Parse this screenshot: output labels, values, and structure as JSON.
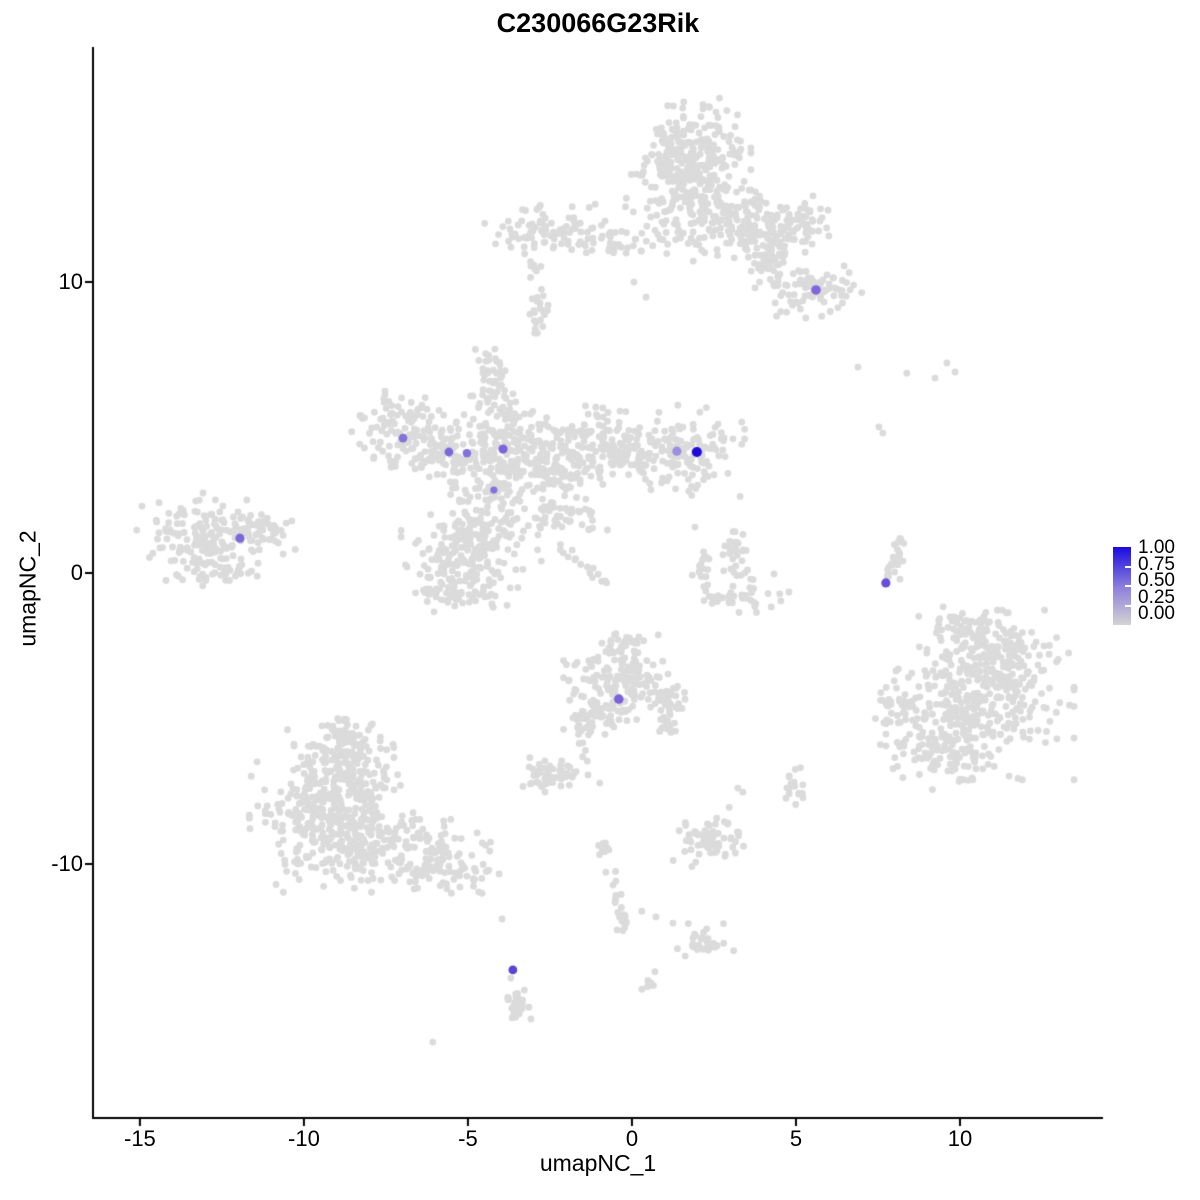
{
  "title": "C230066G23Rik",
  "axes": {
    "xlabel": "umapNC_1",
    "ylabel": "umapNC_2",
    "x_ticks": [
      "-15",
      "-10",
      "-5",
      "0",
      "5",
      "10"
    ],
    "x_tick_values": [
      -15,
      -10,
      -5,
      0,
      5,
      10
    ],
    "y_ticks": [
      "10",
      "0",
      "-10"
    ],
    "y_tick_values": [
      10,
      0,
      -10
    ],
    "xlim": [
      -16.43,
      14.36
    ],
    "ylim": [
      -18.73,
      18.08
    ]
  },
  "legend": {
    "labels": [
      "1.00",
      "0.75",
      "0.50",
      "0.25",
      "0.00"
    ],
    "high_color": "#1A0BE0",
    "mid_color": "#8E80DC",
    "low_color": "#D3D3D3"
  },
  "chart_data": {
    "type": "scatter",
    "title": "C230066G23Rik",
    "xlabel": "umapNC_1",
    "ylabel": "umapNC_2",
    "background_point_color": "#DBDBDB",
    "background_point_radius": 3.4,
    "random_seed": 42,
    "clusters": [
      {
        "name": "top-head",
        "x": 1.77,
        "y": 14.54,
        "sx": 0.79,
        "sy": 0.76,
        "n": 200
      },
      {
        "name": "top-mid",
        "x": 1.92,
        "y": 12.65,
        "sx": 0.98,
        "sy": 0.82,
        "n": 190
      },
      {
        "name": "top-arm-right",
        "x": 3.75,
        "y": 11.72,
        "sx": 0.85,
        "sy": 0.48,
        "n": 110
      },
      {
        "name": "top-right-blob",
        "x": 4.97,
        "y": 12.06,
        "sx": 0.46,
        "sy": 0.45,
        "n": 60
      },
      {
        "name": "top-lower-right",
        "x": 5.37,
        "y": 9.73,
        "sx": 0.73,
        "sy": 0.41,
        "n": 80
      },
      {
        "name": "top-connector",
        "x": 4.21,
        "y": 10.69,
        "sx": 0.37,
        "sy": 0.34,
        "n": 40
      },
      {
        "name": "top-left-band",
        "x": -2.26,
        "y": 11.72,
        "sx": 0.98,
        "sy": 0.45,
        "n": 100
      },
      {
        "name": "top-left-bridge",
        "x": -0.21,
        "y": 11.24,
        "sx": 0.43,
        "sy": 0.17,
        "n": 18
      },
      {
        "name": "top-left-tail",
        "x": -2.9,
        "y": 9.14,
        "sx": 0.21,
        "sy": 0.38,
        "n": 22
      },
      {
        "name": "top-left-dots",
        "x": -2.99,
        "y": 10.48,
        "sx": 0.12,
        "sy": 0.17,
        "n": 7
      },
      {
        "name": "band-left-upper",
        "x": -6.83,
        "y": 4.98,
        "sx": 0.73,
        "sy": 0.58,
        "n": 110
      },
      {
        "name": "band-left-lower",
        "x": -5.79,
        "y": 3.95,
        "sx": 0.67,
        "sy": 0.38,
        "n": 70
      },
      {
        "name": "band-centerleft",
        "x": -4.02,
        "y": 4.3,
        "sx": 0.79,
        "sy": 0.76,
        "n": 160
      },
      {
        "name": "band-center",
        "x": -2.44,
        "y": 3.54,
        "sx": 0.79,
        "sy": 0.82,
        "n": 150
      },
      {
        "name": "band-centerright",
        "x": -1.04,
        "y": 4.5,
        "sx": 0.73,
        "sy": 0.62,
        "n": 110
      },
      {
        "name": "band-arm-inner",
        "x": 0.4,
        "y": 4.16,
        "sx": 0.55,
        "sy": 0.45,
        "n": 70
      },
      {
        "name": "band-arm-end",
        "x": 1.86,
        "y": 4.16,
        "sx": 0.67,
        "sy": 0.65,
        "n": 100
      },
      {
        "name": "band-below-center",
        "x": -4.42,
        "y": 1.82,
        "sx": 0.73,
        "sy": 0.76,
        "n": 120
      },
      {
        "name": "band-lower-blob",
        "x": -5.18,
        "y": 0.45,
        "sx": 0.79,
        "sy": 0.69,
        "n": 130
      },
      {
        "name": "band-lower-edge",
        "x": -5.46,
        "y": -0.65,
        "sx": 0.55,
        "sy": 0.31,
        "n": 45
      },
      {
        "name": "band-neck",
        "x": -4.12,
        "y": 5.95,
        "sx": 0.24,
        "sy": 0.55,
        "n": 35
      },
      {
        "name": "band-neck-top",
        "x": -4.36,
        "y": 7.32,
        "sx": 0.21,
        "sy": 0.27,
        "n": 18
      },
      {
        "name": "band-diag",
        "x": -2.04,
        "y": 1.92,
        "sx": 0.55,
        "sy": 0.34,
        "n": 35
      },
      {
        "name": "left-main",
        "x": -13.17,
        "y": 1.13,
        "sx": 0.82,
        "sy": 0.69,
        "n": 150
      },
      {
        "name": "left-point",
        "x": -11.49,
        "y": 1.41,
        "sx": 0.61,
        "sy": 0.34,
        "n": 55
      },
      {
        "name": "left-bottom",
        "x": -12.41,
        "y": 0.03,
        "sx": 0.43,
        "sy": 0.24,
        "n": 25
      },
      {
        "name": "ring-top",
        "x": 3.08,
        "y": 0.93,
        "sx": 0.21,
        "sy": 0.21,
        "n": 22
      },
      {
        "name": "ring-left",
        "x": 2.13,
        "y": 0.17,
        "sx": 0.15,
        "sy": 0.27,
        "n": 18
      },
      {
        "name": "ring-bottom",
        "x": 3.35,
        "y": -0.79,
        "sx": 0.61,
        "sy": 0.24,
        "n": 40
      },
      {
        "name": "ring-inner",
        "x": 3.29,
        "y": 0.03,
        "sx": 0.37,
        "sy": 0.21,
        "n": 10
      },
      {
        "name": "bottomleft-top",
        "x": -8.75,
        "y": -6.6,
        "sx": 0.76,
        "sy": 0.76,
        "n": 160
      },
      {
        "name": "bottomleft-mid",
        "x": -9.36,
        "y": -7.97,
        "sx": 0.98,
        "sy": 0.86,
        "n": 200
      },
      {
        "name": "bottomleft-base",
        "x": -8.45,
        "y": -9.35,
        "sx": 1.16,
        "sy": 0.69,
        "n": 220
      },
      {
        "name": "bottomleft-armright",
        "x": -6.31,
        "y": -9.69,
        "sx": 0.85,
        "sy": 0.52,
        "n": 90
      },
      {
        "name": "bottomleft-tail",
        "x": -4.94,
        "y": -10.38,
        "sx": 0.46,
        "sy": 0.34,
        "n": 25
      },
      {
        "name": "bottomleft-tip",
        "x": -8.9,
        "y": -5.4,
        "sx": 0.3,
        "sy": 0.27,
        "n": 25
      },
      {
        "name": "mid-main",
        "x": -0.37,
        "y": -3.75,
        "sx": 0.73,
        "sy": 0.69,
        "n": 150
      },
      {
        "name": "mid-top-tip",
        "x": -0.21,
        "y": -2.47,
        "sx": 0.3,
        "sy": 0.24,
        "n": 30
      },
      {
        "name": "mid-right-lobe",
        "x": 1.1,
        "y": -4.3,
        "sx": 0.37,
        "sy": 0.27,
        "n": 30
      },
      {
        "name": "mid-bottom",
        "x": -0.98,
        "y": -4.98,
        "sx": 0.49,
        "sy": 0.31,
        "n": 45
      },
      {
        "name": "mid-left-strand",
        "x": -1.52,
        "y": -5.57,
        "sx": 0.12,
        "sy": 0.38,
        "n": 14
      },
      {
        "name": "mid-right-strand",
        "x": 1.07,
        "y": -5.33,
        "sx": 0.15,
        "sy": 0.24,
        "n": 16
      },
      {
        "name": "small-mid-left",
        "x": -2.47,
        "y": -6.98,
        "sx": 0.37,
        "sy": 0.27,
        "n": 50
      },
      {
        "name": "strand-dot-1",
        "x": -0.88,
        "y": -9.35,
        "sx": 0.09,
        "sy": 0.14,
        "n": 10
      },
      {
        "name": "strand-end-blob",
        "x": -0.37,
        "y": -11.99,
        "sx": 0.15,
        "sy": 0.17,
        "n": 10
      },
      {
        "name": "lower-mid-cluster",
        "x": 2.32,
        "y": -9.11,
        "sx": 0.46,
        "sy": 0.45,
        "n": 70
      },
      {
        "name": "lower-small-cluster",
        "x": 2.23,
        "y": -12.61,
        "sx": 0.37,
        "sy": 0.24,
        "n": 30
      },
      {
        "name": "lower-right-dots",
        "x": 4.88,
        "y": -7.32,
        "sx": 0.18,
        "sy": 0.27,
        "n": 18
      },
      {
        "name": "bottom-strand-blob",
        "x": -3.48,
        "y": -14.78,
        "sx": 0.21,
        "sy": 0.31,
        "n": 28
      },
      {
        "name": "bottom-dot-blob",
        "x": 0.49,
        "y": -13.99,
        "sx": 0.15,
        "sy": 0.17,
        "n": 8
      },
      {
        "name": "right-main",
        "x": 10.61,
        "y": -4.19,
        "sx": 1.22,
        "sy": 1.24,
        "n": 360
      },
      {
        "name": "right-upper",
        "x": 11.37,
        "y": -2.82,
        "sx": 0.67,
        "sy": 0.62,
        "n": 80
      },
      {
        "name": "right-lower",
        "x": 9.33,
        "y": -6.15,
        "sx": 0.79,
        "sy": 0.55,
        "n": 90
      },
      {
        "name": "right-left-satellite",
        "x": 8.05,
        "y": -4.57,
        "sx": 0.34,
        "sy": 0.48,
        "n": 30
      },
      {
        "name": "right-top-tip",
        "x": 10.06,
        "y": -1.89,
        "sx": 0.52,
        "sy": 0.31,
        "n": 40
      }
    ],
    "strands": [
      {
        "name": "thin-arc-right",
        "from": [
          8.29,
          1.27
        ],
        "to": [
          7.77,
          -0.17
        ],
        "n": 20,
        "w": 0.1
      },
      {
        "name": "mid-down-strand",
        "from": [
          -0.61,
          -10.38
        ],
        "to": [
          -0.3,
          -11.86
        ],
        "n": 14,
        "w": 0.09
      },
      {
        "name": "band-diag-strand",
        "from": [
          -2.26,
          0.96
        ],
        "to": [
          -0.73,
          -0.31
        ],
        "n": 16,
        "w": 0.09
      }
    ],
    "singles": [
      [
        0.06,
        10.0
      ],
      [
        0.43,
        9.48
      ],
      [
        1.4,
        5.77
      ],
      [
        2.07,
        5.53
      ],
      [
        -11.74,
        2.51
      ],
      [
        -10.37,
        1.79
      ],
      [
        -1.34,
        -6.94
      ],
      [
        -0.98,
        -7.22
      ],
      [
        0.3,
        -11.62
      ],
      [
        0.73,
        -11.82
      ],
      [
        1.25,
        -12.03
      ],
      [
        3.23,
        -7.39
      ],
      [
        3.38,
        -7.53
      ],
      [
        -3.69,
        -13.92
      ],
      [
        -6.07,
        -16.12
      ],
      [
        -4.05,
        -10.34
      ],
      [
        -3.96,
        -11.89
      ],
      [
        1.92,
        1.58
      ],
      [
        4.33,
        -0.03
      ],
      [
        8.14,
        0.72
      ],
      [
        8.26,
        0.41
      ],
      [
        8.17,
        -0.21
      ],
      [
        6.89,
        7.08
      ],
      [
        8.38,
        6.87
      ],
      [
        9.6,
        7.22
      ],
      [
        9.85,
        6.91
      ],
      [
        9.24,
        6.7
      ],
      [
        7.53,
        5.02
      ],
      [
        7.65,
        4.81
      ]
    ],
    "expressing_cells": [
      {
        "x": 5.61,
        "y": 9.73,
        "value": 0.5,
        "color": "#7E66DB",
        "r": 4.8
      },
      {
        "x": -6.98,
        "y": 4.64,
        "value": 0.45,
        "color": "#8372DC",
        "r": 4.4
      },
      {
        "x": -5.58,
        "y": 4.16,
        "value": 0.5,
        "color": "#7D68DA",
        "r": 4.4
      },
      {
        "x": -5.03,
        "y": 4.12,
        "value": 0.45,
        "color": "#8372DC",
        "r": 4.2
      },
      {
        "x": -3.93,
        "y": 4.26,
        "value": 0.5,
        "color": "#7C64DA",
        "r": 4.6
      },
      {
        "x": 1.37,
        "y": 4.19,
        "value": 0.3,
        "color": "#9C8FE2",
        "r": 4.6
      },
      {
        "x": 1.98,
        "y": 4.16,
        "value": 1.0,
        "color": "#1E0AD9",
        "r": 5.0
      },
      {
        "x": -4.21,
        "y": 2.85,
        "value": 0.45,
        "color": "#8372DC",
        "r": 3.6
      },
      {
        "x": -11.95,
        "y": 1.2,
        "value": 0.5,
        "color": "#7D68DA",
        "r": 4.6
      },
      {
        "x": 7.74,
        "y": -0.34,
        "value": 0.6,
        "color": "#6A4FD6",
        "r": 4.6
      },
      {
        "x": -0.4,
        "y": -4.33,
        "value": 0.5,
        "color": "#7A63DA",
        "r": 4.8
      },
      {
        "x": -3.63,
        "y": -13.64,
        "value": 0.65,
        "color": "#5C43D2",
        "r": 4.4
      }
    ]
  }
}
